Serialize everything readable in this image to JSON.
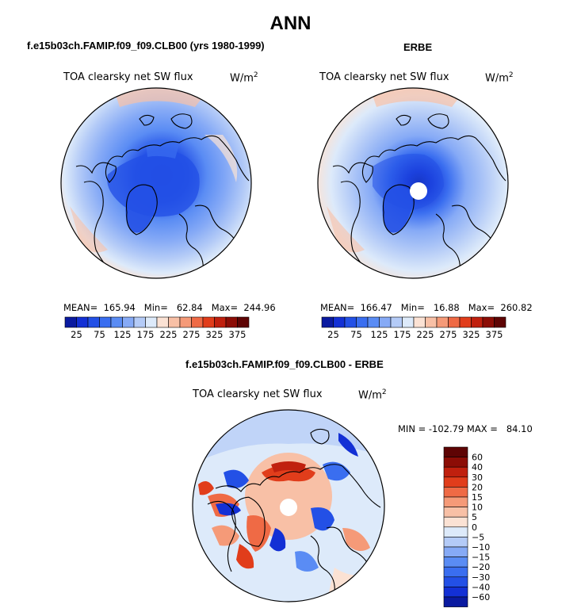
{
  "title": "ANN",
  "panels": [
    {
      "title": "f.e15b03ch.FAMIP.f09_f09.CLB00 (yrs 1980-1999)",
      "field": "TOA clearsky net SW flux",
      "units": "W/m",
      "units_sup": "2",
      "stats": "MEAN=  165.94   Min=   62.84   Max=  244.96",
      "has_pole_hole": false
    },
    {
      "title": "ERBE",
      "field": "TOA clearsky net SW flux",
      "units": "W/m",
      "units_sup": "2",
      "stats": "MEAN=  166.47   Min=   16.88   Max=  260.82",
      "has_pole_hole": true
    },
    {
      "title": "f.e15b03ch.FAMIP.f09_f09.CLB00 - ERBE",
      "field": "TOA clearsky net SW flux",
      "units": "W/m",
      "units_sup": "2",
      "stats": "MIN = -102.79 MAX =   84.10",
      "has_pole_hole": true
    }
  ],
  "chart_data": [
    {
      "type": "heatmap",
      "projection": "north-polar-stereographic",
      "title": "f.e15b03ch.FAMIP.f09_f09.CLB00 (yrs 1980-1999)",
      "variable": "TOA clearsky net SW flux",
      "units": "W/m2",
      "mean": 165.94,
      "min": 62.84,
      "max": 244.96,
      "colorbar_levels": [
        25,
        50,
        75,
        100,
        125,
        150,
        175,
        200,
        225,
        250,
        275,
        300,
        325,
        350,
        375
      ],
      "colorbar_tick_labels": [
        "25",
        "75",
        "125",
        "175",
        "225",
        "275",
        "325",
        "375"
      ],
      "colorbar_colors": [
        "#0a1aa0",
        "#1330d5",
        "#2350e6",
        "#3a6ef0",
        "#5a8cf4",
        "#86aaf6",
        "#b4cbf7",
        "#ddeafa",
        "#fbe2d4",
        "#f8c0a6",
        "#f59a78",
        "#ef6a45",
        "#e13d1b",
        "#c0200e",
        "#8c0d06",
        "#5e0404"
      ],
      "approx_zonal_profile": [
        {
          "lat": 90,
          "value": 60
        },
        {
          "lat": 80,
          "value": 75
        },
        {
          "lat": 70,
          "value": 130
        },
        {
          "lat": 60,
          "value": 165
        },
        {
          "lat": 50,
          "value": 200
        },
        {
          "lat": 40,
          "value": 235
        }
      ]
    },
    {
      "type": "heatmap",
      "projection": "north-polar-stereographic",
      "title": "ERBE",
      "variable": "TOA clearsky net SW flux",
      "units": "W/m2",
      "mean": 166.47,
      "min": 16.88,
      "max": 260.82,
      "colorbar_levels": [
        25,
        50,
        75,
        100,
        125,
        150,
        175,
        200,
        225,
        250,
        275,
        300,
        325,
        350,
        375
      ],
      "colorbar_tick_labels": [
        "25",
        "75",
        "125",
        "175",
        "225",
        "275",
        "325",
        "375"
      ],
      "colorbar_colors": [
        "#0a1aa0",
        "#1330d5",
        "#2350e6",
        "#3a6ef0",
        "#5a8cf4",
        "#86aaf6",
        "#b4cbf7",
        "#ddeafa",
        "#fbe2d4",
        "#f8c0a6",
        "#f59a78",
        "#ef6a45",
        "#e13d1b",
        "#c0200e",
        "#8c0d06",
        "#5e0404"
      ],
      "approx_zonal_profile": [
        {
          "lat": 88,
          "value": 20
        },
        {
          "lat": 80,
          "value": 70
        },
        {
          "lat": 70,
          "value": 120
        },
        {
          "lat": 60,
          "value": 165
        },
        {
          "lat": 50,
          "value": 205
        },
        {
          "lat": 40,
          "value": 240
        }
      ]
    },
    {
      "type": "heatmap",
      "projection": "north-polar-stereographic",
      "title": "f.e15b03ch.FAMIP.f09_f09.CLB00 - ERBE",
      "variable": "TOA clearsky net SW flux",
      "units": "W/m2",
      "min": -102.79,
      "max": 84.1,
      "colorbar_levels": [
        -60,
        -40,
        -30,
        -20,
        -15,
        -10,
        -5,
        0,
        5,
        10,
        15,
        20,
        30,
        40,
        60
      ],
      "colorbar_tick_labels": [
        "−60",
        "−40",
        "−30",
        "−20",
        "−15",
        "−10",
        "−5",
        "0",
        "5",
        "10",
        "15",
        "20",
        "30",
        "40",
        "60"
      ],
      "colorbar_colors": [
        "#0a1aa0",
        "#1330d5",
        "#2350e6",
        "#3a6ef0",
        "#5a8cf4",
        "#86aaf6",
        "#b4cbf7",
        "#ddeafa",
        "#fbe2d4",
        "#f8c0a6",
        "#f59a78",
        "#ef6a45",
        "#e13d1b",
        "#c0200e",
        "#8c0d06",
        "#5e0404"
      ]
    }
  ]
}
